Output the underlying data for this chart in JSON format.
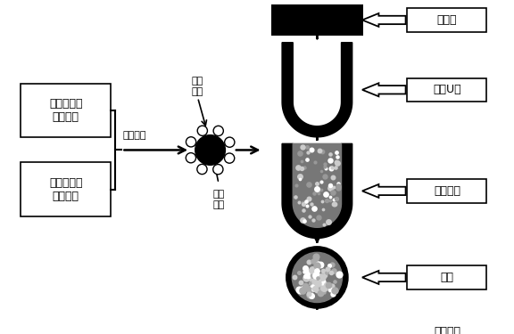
{
  "bg_color": "#ffffff",
  "border_color": "#000000",
  "text_color": "#000000",
  "labels": {
    "box1": "微米粉体按\n比例称重",
    "box2": "纳米粉体按\n比例称重",
    "label_weina": "微纳复合",
    "label_nano": "纳米\n粉体",
    "label_micro": "微米\n粉体",
    "right1": "纯铁带",
    "right2": "轧成U型",
    "right3": "填充粉体",
    "right4": "合口",
    "right5": "拉拔成丝"
  },
  "font_size": 9,
  "font_family": "SimHei"
}
